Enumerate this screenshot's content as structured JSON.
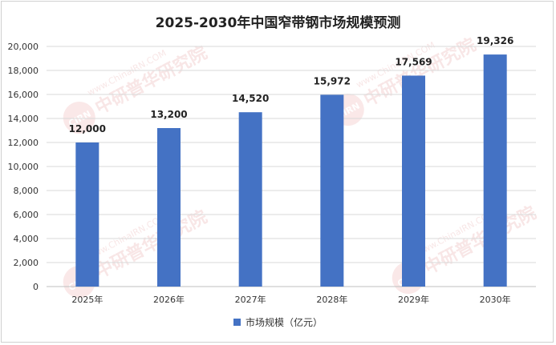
{
  "chart_data": {
    "type": "bar",
    "title": "2025-2030年中国窄带钢市场规模预测",
    "categories": [
      "2025年",
      "2026年",
      "2027年",
      "2028年",
      "2029年",
      "2030年"
    ],
    "series": [
      {
        "name": "市场规模（亿元）",
        "values": [
          12000,
          13200,
          14520,
          15972,
          17569,
          19326
        ]
      }
    ],
    "data_labels": [
      "12,000",
      "13,200",
      "14,520",
      "15,972",
      "17,569",
      "19,326"
    ],
    "y_ticks": [
      "0",
      "2,000",
      "4,000",
      "6,000",
      "8,000",
      "10,000",
      "12,000",
      "14,000",
      "16,000",
      "18,000",
      "20,000"
    ],
    "ylim": [
      0,
      20000
    ],
    "grid": true,
    "legend_position": "bottom",
    "bar_color": "#4472c4"
  },
  "watermark": {
    "brand": "中研普华研究院",
    "url": "www.ChinaIRN.COM",
    "logo": "CIRN"
  }
}
